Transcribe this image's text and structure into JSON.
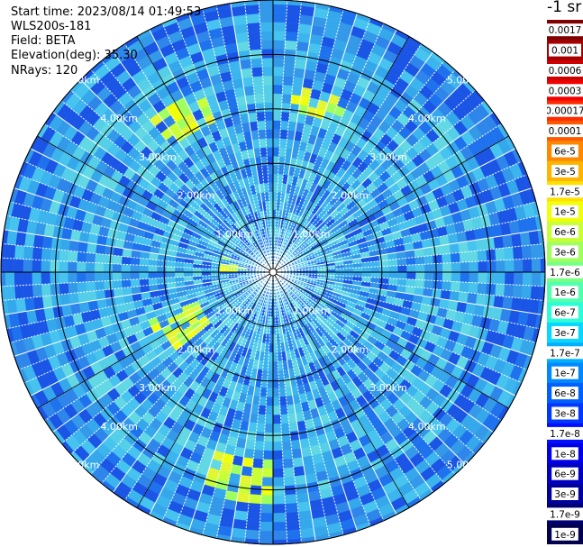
{
  "header": {
    "start_time": "Start time: 2023/08/14 01:49:53",
    "instrument": "WLS200s-181",
    "field": "Field: BETA",
    "elevation": "Elevation(deg): 35.30",
    "nrays": "NRays: 120"
  },
  "colorbar": {
    "unit": "-1 sr",
    "ticks": [
      "0.0017",
      "0.001",
      "0.0006",
      "0.0003",
      "0.00017",
      "0.0001",
      "6e-5",
      "3e-5",
      "1.7e-5",
      "1e-5",
      "6e-6",
      "3e-6",
      "1.7e-6",
      "1e-6",
      "6e-7",
      "3e-7",
      "1.7e-7",
      "1e-7",
      "6e-8",
      "3e-8",
      "1.7e-8",
      "1e-8",
      "6e-9",
      "3e-9",
      "1.7e-9",
      "1e-9"
    ],
    "colors": [
      "#7f0000",
      "#a50000",
      "#cc0000",
      "#f20000",
      "#ff2a00",
      "#ff5a00",
      "#ff8800",
      "#ffb400",
      "#ffe000",
      "#f0ff0a",
      "#c8ff36",
      "#a0ff5e",
      "#78ff86",
      "#52ffae",
      "#2cfdd6",
      "#08d8ff",
      "#00b0ff",
      "#0088ff",
      "#0060ff",
      "#0038ff",
      "#0010ff",
      "#0000e6",
      "#0000c0",
      "#00009a",
      "#000074",
      "#00004e"
    ]
  },
  "chart_data": {
    "type": "heatmap",
    "projection": "polar-ppi",
    "field": "BETA",
    "elevation_deg": 35.3,
    "n_rays": 120,
    "range_rings_km": [
      1.0,
      2.0,
      3.0,
      4.0,
      5.0
    ],
    "ring_labels": [
      "1.00km",
      "2.00km",
      "3.00km",
      "4.00km",
      "5.00km"
    ],
    "max_range_km": 5.0,
    "typical_value": "1e-7 to 6e-7 (cyan-blue background)",
    "enhanced_regions": [
      {
        "azimuth_deg": 330,
        "range_km": [
          3.0,
          3.6
        ],
        "value": "1e-5"
      },
      {
        "azimuth_deg": 15,
        "range_km": [
          3.0,
          3.4
        ],
        "value": "1e-5"
      },
      {
        "azimuth_deg": 190,
        "range_km": [
          3.5,
          4.2
        ],
        "value": "1e-5"
      },
      {
        "azimuth_deg": 240,
        "range_km": [
          1.5,
          2.4
        ],
        "value": "1e-5"
      },
      {
        "azimuth_deg": 280,
        "range_km": [
          0.5,
          1.0
        ],
        "value": "1e-5"
      }
    ],
    "colors": {
      "background": "#2f9ce6",
      "rings": "#000000",
      "spokes": "#ffffff"
    }
  }
}
